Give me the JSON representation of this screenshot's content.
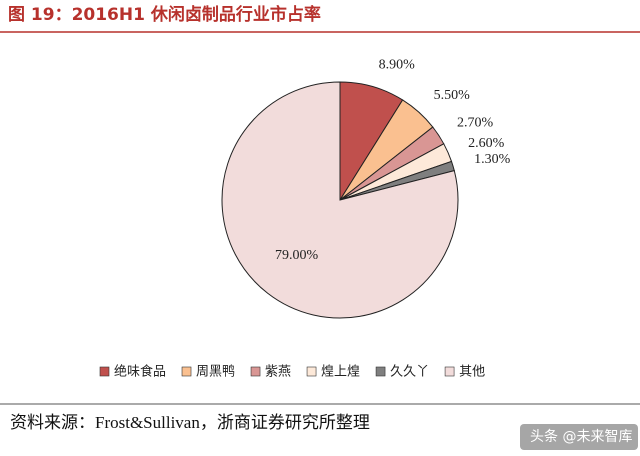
{
  "chart_data": {
    "type": "pie",
    "title": "图 19：2016H1 休闲卤制品行业市占率",
    "categories": [
      "绝味食品",
      "周黑鸭",
      "紫燕",
      "煌上煌",
      "久久丫",
      "其他"
    ],
    "values": [
      8.9,
      5.5,
      2.7,
      2.6,
      1.3,
      79.0
    ],
    "value_labels": [
      "8.90%",
      "5.50%",
      "2.70%",
      "2.60%",
      "1.30%",
      "79.00%"
    ],
    "colors": [
      "#c0504d",
      "#fac090",
      "#d99694",
      "#fde9d9",
      "#7f7f7f",
      "#f2dcdb"
    ],
    "source": "资料来源：Frost&Sullivan，浙商证券研究所整理",
    "watermark": "头条 @未来智库"
  }
}
